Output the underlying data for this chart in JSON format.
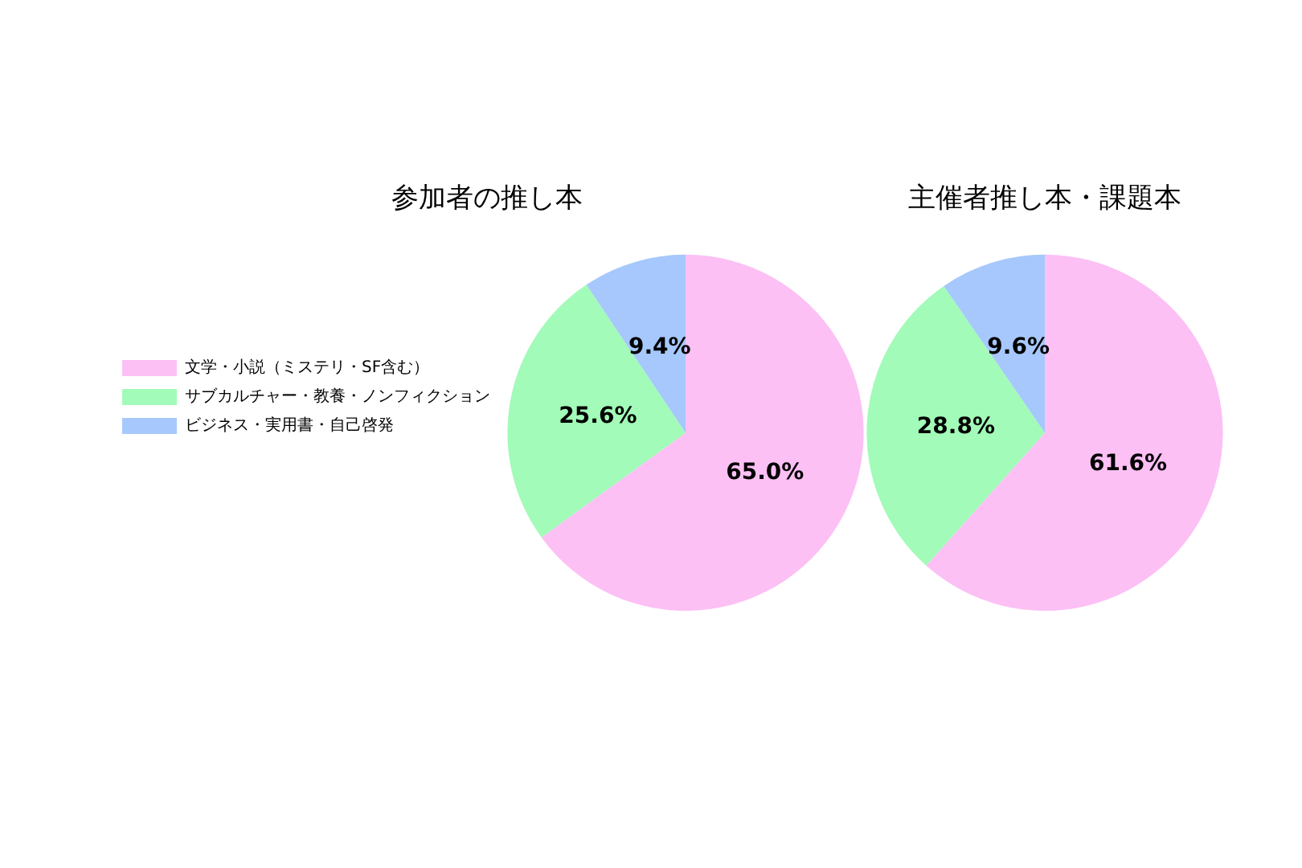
{
  "chart_data": [
    {
      "type": "pie",
      "title": "参加者の推し本",
      "categories": [
        "文学・小説（ミステリ・SF含む）",
        "サブカルチャー・教養・ノンフィクション",
        "ビジネス・実用書・自己啓発"
      ],
      "values": [
        65.0,
        25.6,
        9.4
      ],
      "colors": [
        "#fcc0f5",
        "#a2fbb8",
        "#a6c8fc"
      ],
      "value_labels": [
        "65.0%",
        "25.6%",
        "9.4%"
      ],
      "legend": "left"
    },
    {
      "type": "pie",
      "title": "主催者推し本・課題本",
      "categories": [
        null,
        null,
        null
      ],
      "values": [
        61.6,
        28.8,
        9.6
      ],
      "colors": [
        "#fcc0f5",
        "#a2fbb8",
        "#a6c8fc"
      ],
      "value_labels": [
        "61.6%",
        "28.8%",
        "9.6%"
      ]
    }
  ]
}
